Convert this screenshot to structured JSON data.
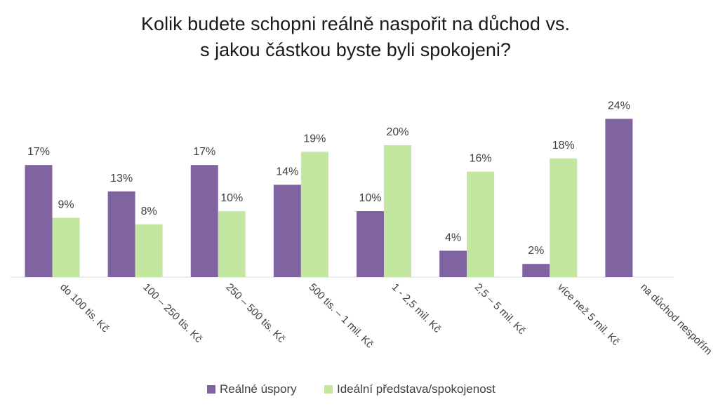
{
  "title_lines": [
    "Kolik budete schopni reálně naspořit na důchod vs.",
    "s jakou částkou byste byli  spokojeni?"
  ],
  "chart_data": {
    "type": "bar",
    "title": "Kolik budete schopni reálně naspořit na důchod vs. s jakou částkou byste byli  spokojeni?",
    "categories": [
      "do 100 tis. Kč",
      "100 – 250 tis. Kč",
      "250 – 500 tis. Kč",
      "500 tis. – 1 mil. Kč",
      "1 - 2,5 mil. Kč",
      "2,5 – 5 mil. Kč",
      "více než 5 mil. Kč",
      "na důchod nespořím"
    ],
    "series": [
      {
        "name": "Reálné úspory",
        "color": "#8064a2",
        "values": [
          17,
          13,
          17,
          14,
          10,
          4,
          2,
          24
        ],
        "labels": [
          "17%",
          "13%",
          "17%",
          "14%",
          "10%",
          "4%",
          "2%",
          "24%"
        ]
      },
      {
        "name": "Ideální představa/spokojenost",
        "color": "#c3e6a0",
        "values": [
          9,
          8,
          10,
          19,
          20,
          16,
          18,
          null
        ],
        "labels": [
          "9%",
          "8%",
          "10%",
          "19%",
          "20%",
          "16%",
          "18%",
          null
        ]
      }
    ],
    "ylim": [
      0,
      25
    ],
    "grid": false,
    "legend": "bottom",
    "xlabel": "",
    "ylabel": ""
  }
}
